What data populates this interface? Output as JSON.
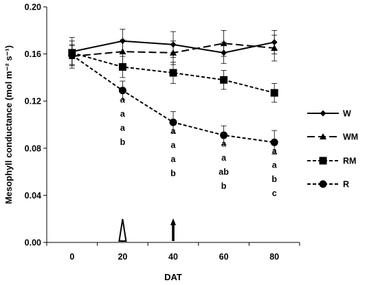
{
  "chart_data": {
    "type": "line",
    "title": "",
    "xlabel": "DAT",
    "ylabel": "Mesophyll conductance (mol m⁻² s⁻¹)",
    "x": [
      0,
      20,
      40,
      60,
      80
    ],
    "x_tick_labels": [
      "0",
      "20",
      "40",
      "60",
      "80"
    ],
    "y_tick_labels": [
      "0.00",
      "0.04",
      "0.08",
      "0.12",
      "0.16",
      "0.20"
    ],
    "xlim": [
      -10,
      90
    ],
    "ylim": [
      0,
      0.2
    ],
    "grid": false,
    "legend_position": "right",
    "series": [
      {
        "name": "W",
        "marker": "diamond",
        "line_style": "solid",
        "values": [
          0.162,
          0.171,
          0.168,
          0.161,
          0.17
        ],
        "errors": [
          0.012,
          0.01,
          0.011,
          0.009,
          0.01
        ]
      },
      {
        "name": "WM",
        "marker": "triangle",
        "line_style": "long-dash",
        "values": [
          0.158,
          0.162,
          0.161,
          0.169,
          0.165
        ],
        "errors": [
          0.01,
          0.01,
          0.01,
          0.011,
          0.011
        ]
      },
      {
        "name": "RM",
        "marker": "square",
        "line_style": "short-dash",
        "values": [
          0.161,
          0.149,
          0.144,
          0.138,
          0.127
        ],
        "errors": [
          0.01,
          0.009,
          0.009,
          0.008,
          0.008
        ]
      },
      {
        "name": "R",
        "marker": "circle",
        "line_style": "short-dash",
        "values": [
          0.159,
          0.129,
          0.102,
          0.091,
          0.085
        ],
        "errors": [
          0.008,
          0.008,
          0.009,
          0.008,
          0.01
        ]
      }
    ],
    "significance_letters": [
      {
        "x": 20,
        "letters": [
          "a",
          "a",
          "a",
          "b"
        ]
      },
      {
        "x": 40,
        "letters": [
          "a",
          "a",
          "a",
          "b"
        ]
      },
      {
        "x": 60,
        "letters": [
          "a",
          "a",
          "ab",
          "b"
        ]
      },
      {
        "x": 80,
        "letters": [
          "a",
          "a",
          "b",
          "c"
        ]
      }
    ],
    "annotations": [
      {
        "x": 20,
        "shape": "open-arrowhead"
      },
      {
        "x": 40,
        "shape": "filled-arrow"
      }
    ]
  }
}
